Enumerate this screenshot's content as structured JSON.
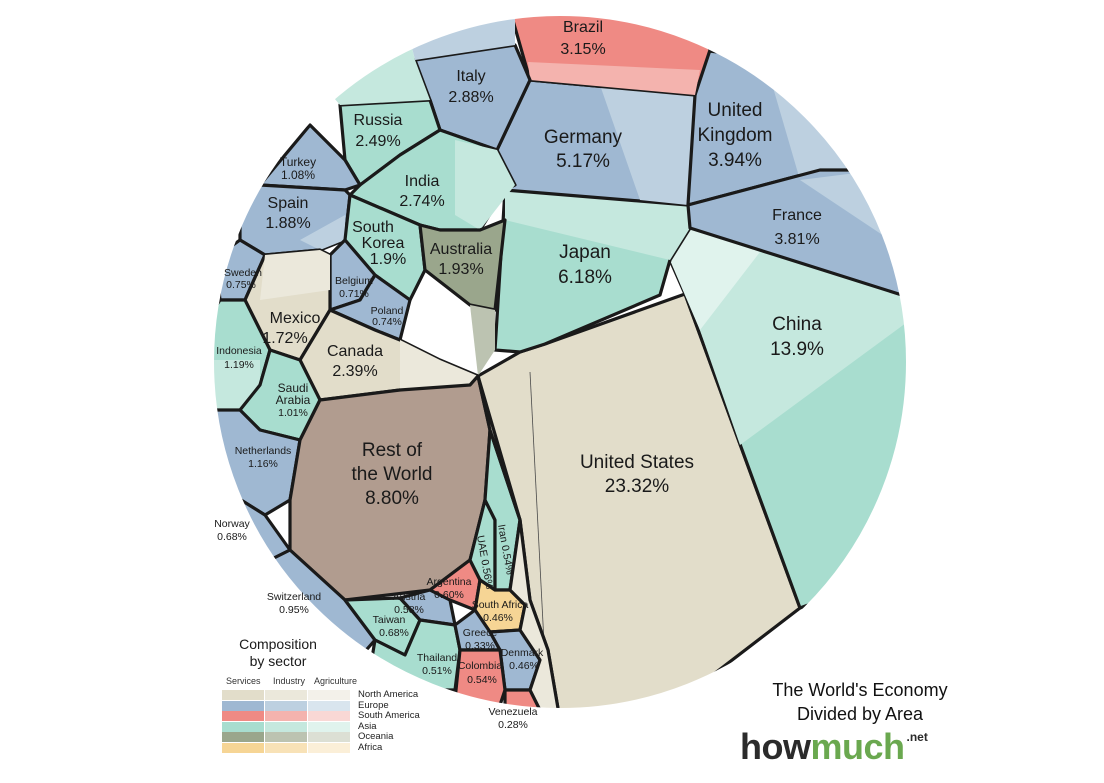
{
  "chart_data": {
    "type": "voronoi-treemap",
    "title": "The World's Economy",
    "subtitle": "Divided by Area",
    "countries": [
      {
        "name": "United States",
        "value": "23.32%",
        "region": "North America"
      },
      {
        "name": "China",
        "value": "13.9%",
        "region": "Asia"
      },
      {
        "name": "Rest of the World",
        "value": "8.80%",
        "region": ""
      },
      {
        "name": "Japan",
        "value": "6.18%",
        "region": "Asia"
      },
      {
        "name": "Germany",
        "value": "5.17%",
        "region": "Europe"
      },
      {
        "name": "United Kingdom",
        "value": "3.94%",
        "region": "Europe"
      },
      {
        "name": "France",
        "value": "3.81%",
        "region": "Europe"
      },
      {
        "name": "Brazil",
        "value": "3.15%",
        "region": "South America"
      },
      {
        "name": "Italy",
        "value": "2.88%",
        "region": "Europe"
      },
      {
        "name": "India",
        "value": "2.74%",
        "region": "Asia"
      },
      {
        "name": "Russia",
        "value": "2.49%",
        "region": "Europe"
      },
      {
        "name": "Canada",
        "value": "2.39%",
        "region": "North America"
      },
      {
        "name": "Australia",
        "value": "1.93%",
        "region": "Oceania"
      },
      {
        "name": "South Korea",
        "value": "1.9%",
        "region": "Asia"
      },
      {
        "name": "Spain",
        "value": "1.88%",
        "region": "Europe"
      },
      {
        "name": "Mexico",
        "value": "1.72%",
        "region": "North America"
      },
      {
        "name": "Indonesia",
        "value": "1.19%",
        "region": "Asia"
      },
      {
        "name": "Netherlands",
        "value": "1.16%",
        "region": "Europe"
      },
      {
        "name": "Turkey",
        "value": "1.08%",
        "region": "Europe"
      },
      {
        "name": "Saudi Arabia",
        "value": "1.01%",
        "region": "Asia"
      },
      {
        "name": "Switzerland",
        "value": "0.95%",
        "region": "Europe"
      },
      {
        "name": "Sweden",
        "value": "0.75%",
        "region": "Europe"
      },
      {
        "name": "Poland",
        "value": "0.74%",
        "region": "Europe"
      },
      {
        "name": "Belgium",
        "value": "0.71%",
        "region": "Europe"
      },
      {
        "name": "Taiwan",
        "value": "0.68%",
        "region": "Asia"
      },
      {
        "name": "Norway",
        "value": "0.68%",
        "region": "Europe"
      },
      {
        "name": "Argentina",
        "value": "0.60%",
        "region": "South America"
      },
      {
        "name": "Austria",
        "value": "0.58%",
        "region": "Europe"
      },
      {
        "name": "UAE",
        "value": "0.56%",
        "region": "Asia"
      },
      {
        "name": "Iran",
        "value": "0.54%",
        "region": "Asia"
      },
      {
        "name": "Colombia",
        "value": "0.54%",
        "region": "South America"
      },
      {
        "name": "Thailand",
        "value": "0.51%",
        "region": "Asia"
      },
      {
        "name": "Denmark",
        "value": "0.46%",
        "region": "Europe"
      },
      {
        "name": "South Africa",
        "value": "0.46%",
        "region": "Africa"
      },
      {
        "name": "Greece",
        "value": "0.33%",
        "region": "Europe"
      },
      {
        "name": "Venezuela",
        "value": "0.28%",
        "region": "South America"
      }
    ]
  },
  "labels": {
    "us_name": "United States",
    "us_val": "23.32%",
    "cn_name": "China",
    "cn_val": "13.9%",
    "row_l1": "Rest of",
    "row_l2": "the World",
    "row_val": "8.80%",
    "jp_name": "Japan",
    "jp_val": "6.18%",
    "de_name": "Germany",
    "de_val": "5.17%",
    "uk_l1": "United",
    "uk_l2": "Kingdom",
    "uk_val": "3.94%",
    "fr_name": "France",
    "fr_val": "3.81%",
    "br_name": "Brazil",
    "br_val": "3.15%",
    "it_name": "Italy",
    "it_val": "2.88%",
    "in_name": "India",
    "in_val": "2.74%",
    "ru_name": "Russia",
    "ru_val": "2.49%",
    "ca_name": "Canada",
    "ca_val": "2.39%",
    "au_name": "Australia",
    "au_val": "1.93%",
    "kr_l1": "South",
    "kr_l2": "Korea",
    "kr_val": "1.9%",
    "es_name": "Spain",
    "es_val": "1.88%",
    "mx_name": "Mexico",
    "mx_val": "1.72%",
    "id_name": "Indonesia",
    "id_val": "1.19%",
    "nl_name": "Netherlands",
    "nl_val": "1.16%",
    "tr_name": "Turkey",
    "tr_val": "1.08%",
    "sa_l1": "Saudi",
    "sa_l2": "Arabia",
    "sa_val": "1.01%",
    "ch_name": "Switzerland",
    "ch_val": "0.95%",
    "se_name": "Sweden",
    "se_val": "0.75%",
    "pl_name": "Poland",
    "pl_val": "0.74%",
    "be_name": "Belgium",
    "be_val": "0.71%",
    "tw_name": "Taiwan",
    "tw_val": "0.68%",
    "no_name": "Norway",
    "no_val": "0.68%",
    "ar_name": "Argentina",
    "ar_val": "0.60%",
    "at_name": "Austria",
    "at_val": "0.58%",
    "ae_text": "UAE 0.56%",
    "ir_text": "Iran 0.54%",
    "co_name": "Colombia",
    "co_val": "0.54%",
    "th_name": "Thailand",
    "th_val": "0.51%",
    "dk_name": "Denmark",
    "dk_val": "0.46%",
    "za_name": "South Africa",
    "za_val": "0.46%",
    "gr_name": "Greece",
    "gr_val": "0.33%",
    "ve_name": "Venezuela",
    "ve_val": "0.28%"
  },
  "legend": {
    "title_l1": "Composition",
    "title_l2": "by sector",
    "columns": [
      "Services",
      "Industry",
      "Agriculture"
    ],
    "regions": [
      {
        "name": "North America",
        "colors": [
          "#e2ddca",
          "#ebe8db",
          "#f3f1ea"
        ]
      },
      {
        "name": "Europe",
        "colors": [
          "#9fb8d2",
          "#bdd0e0",
          "#d9e5ee"
        ]
      },
      {
        "name": "South America",
        "colors": [
          "#ef8a84",
          "#f4b3ae",
          "#f9d8d5"
        ]
      },
      {
        "name": "Asia",
        "colors": [
          "#a8ddcf",
          "#c5e8de",
          "#e0f3ed"
        ]
      },
      {
        "name": "Oceania",
        "colors": [
          "#9aa68c",
          "#bcc3b1",
          "#dcdfd4"
        ]
      },
      {
        "name": "Africa",
        "colors": [
          "#f6d595",
          "#f8e2b7",
          "#fbefd8"
        ]
      }
    ]
  },
  "footer": {
    "title_l1": "The World's Economy",
    "title_l2": "Divided by Area",
    "brand_a": "how",
    "brand_b": "much",
    "brand_c": ".net"
  },
  "colors": {
    "na": "#e2ddca",
    "na2": "#ebe8db",
    "eu": "#9fb8d2",
    "eu2": "#bdd0e0",
    "sam": "#ef8a84",
    "sam2": "#f4b3ae",
    "asia": "#a8ddcf",
    "asia2": "#c5e8de",
    "oce": "#9aa68c",
    "afr": "#f6d595",
    "row": "#b19c8f",
    "border": "#1a1a1a"
  }
}
